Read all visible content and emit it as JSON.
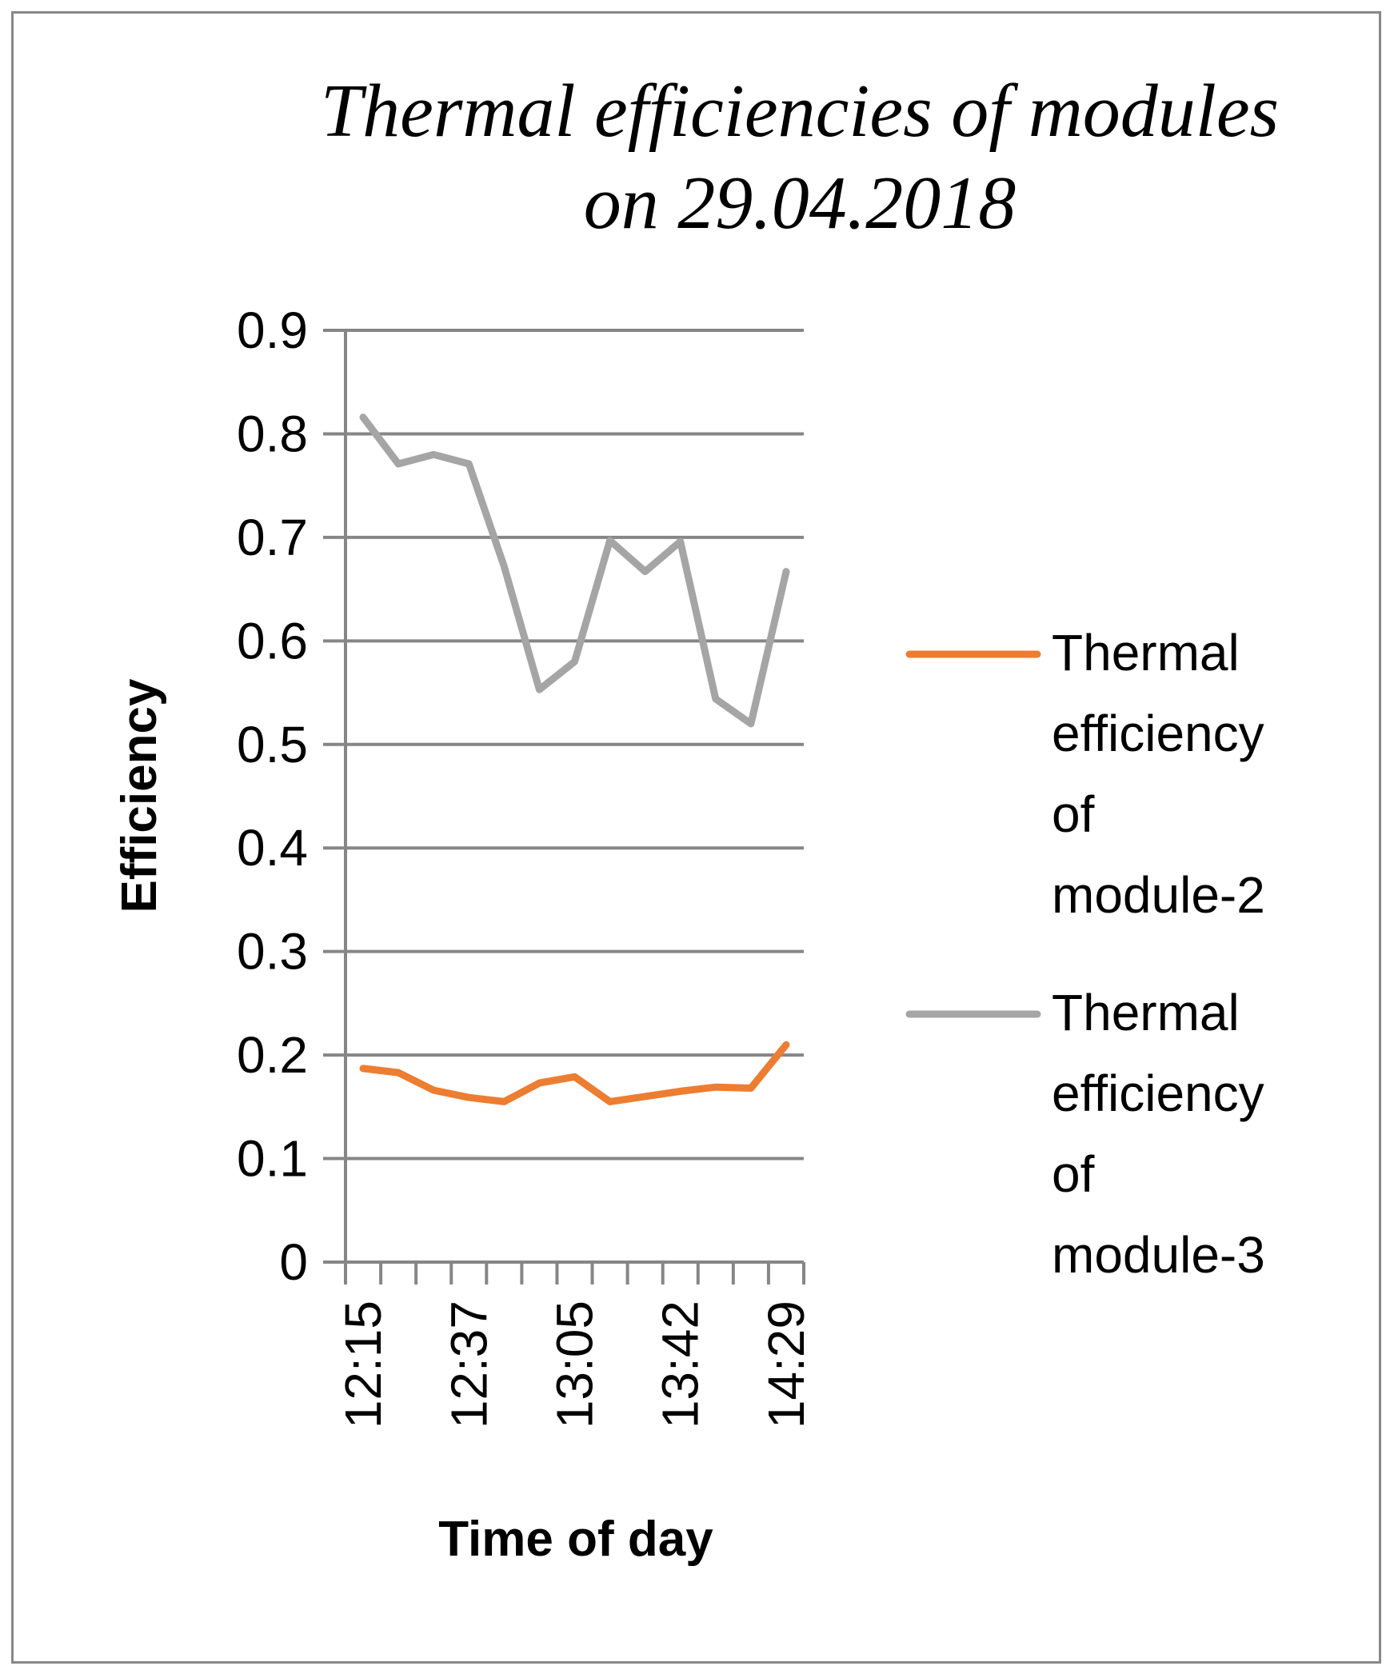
{
  "chart_data": {
    "type": "line",
    "title": [
      "Thermal efficiencies of modules",
      "on 29.04.2018"
    ],
    "xlabel": "Time of day",
    "ylabel": "Efficiency",
    "ylim": [
      0,
      0.9
    ],
    "yticks": [
      "0",
      "0.1",
      "0.2",
      "0.3",
      "0.4",
      "0.5",
      "0.6",
      "0.7",
      "0.8",
      "0.9"
    ],
    "grid": true,
    "legend_position": "right",
    "x_tick_labels": [
      "12:15",
      "12:37",
      "13:05",
      "13:42",
      "14:29"
    ],
    "x_tick_label_indices": [
      0,
      3,
      6,
      9,
      12
    ],
    "point_count": 13,
    "series": [
      {
        "name": "Thermal efficiency of module-2",
        "legend_lines": [
          "Thermal",
          "efficiency",
          "of",
          "module-2"
        ],
        "color": "#ED7D31",
        "values": [
          0.187,
          0.183,
          0.166,
          0.159,
          0.155,
          0.173,
          0.179,
          0.155,
          0.16,
          0.165,
          0.169,
          0.168,
          0.21
        ]
      },
      {
        "name": "Thermal efficiency of module-3",
        "legend_lines": [
          "Thermal",
          "efficiency",
          "of",
          "module-3"
        ],
        "color": "#A5A5A5",
        "values": [
          0.816,
          0.771,
          0.78,
          0.771,
          0.672,
          0.553,
          0.58,
          0.697,
          0.667,
          0.696,
          0.544,
          0.52,
          0.667
        ]
      }
    ]
  }
}
